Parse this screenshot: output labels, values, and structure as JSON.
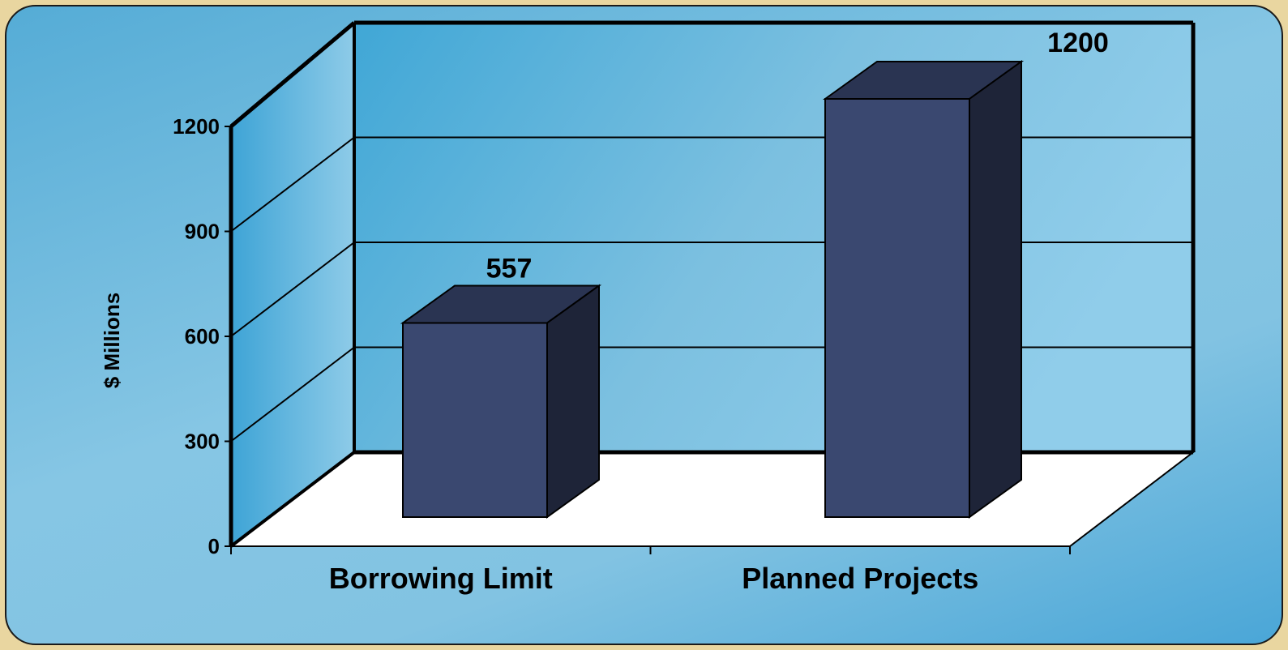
{
  "chart_data": {
    "type": "bar",
    "categories": [
      "Borrowing Limit",
      "Planned Projects"
    ],
    "values": [
      557,
      1200
    ],
    "data_labels": [
      "557",
      "1200"
    ],
    "ylabel": "$ Millions",
    "xlabel": "",
    "ylim": [
      0,
      1200
    ],
    "yticks": [
      0,
      300,
      600,
      900,
      1200
    ],
    "ytick_labels": [
      "0",
      "300",
      "600",
      "900",
      "1200"
    ],
    "grid": true,
    "style": "3d-column",
    "colors": {
      "bar_front": "#3a4870",
      "bar_top": "#2a3452",
      "bar_side": "#1e2438",
      "floor": "#ffffff",
      "frame": "#000000",
      "page_border": "#e9d6a0"
    }
  }
}
